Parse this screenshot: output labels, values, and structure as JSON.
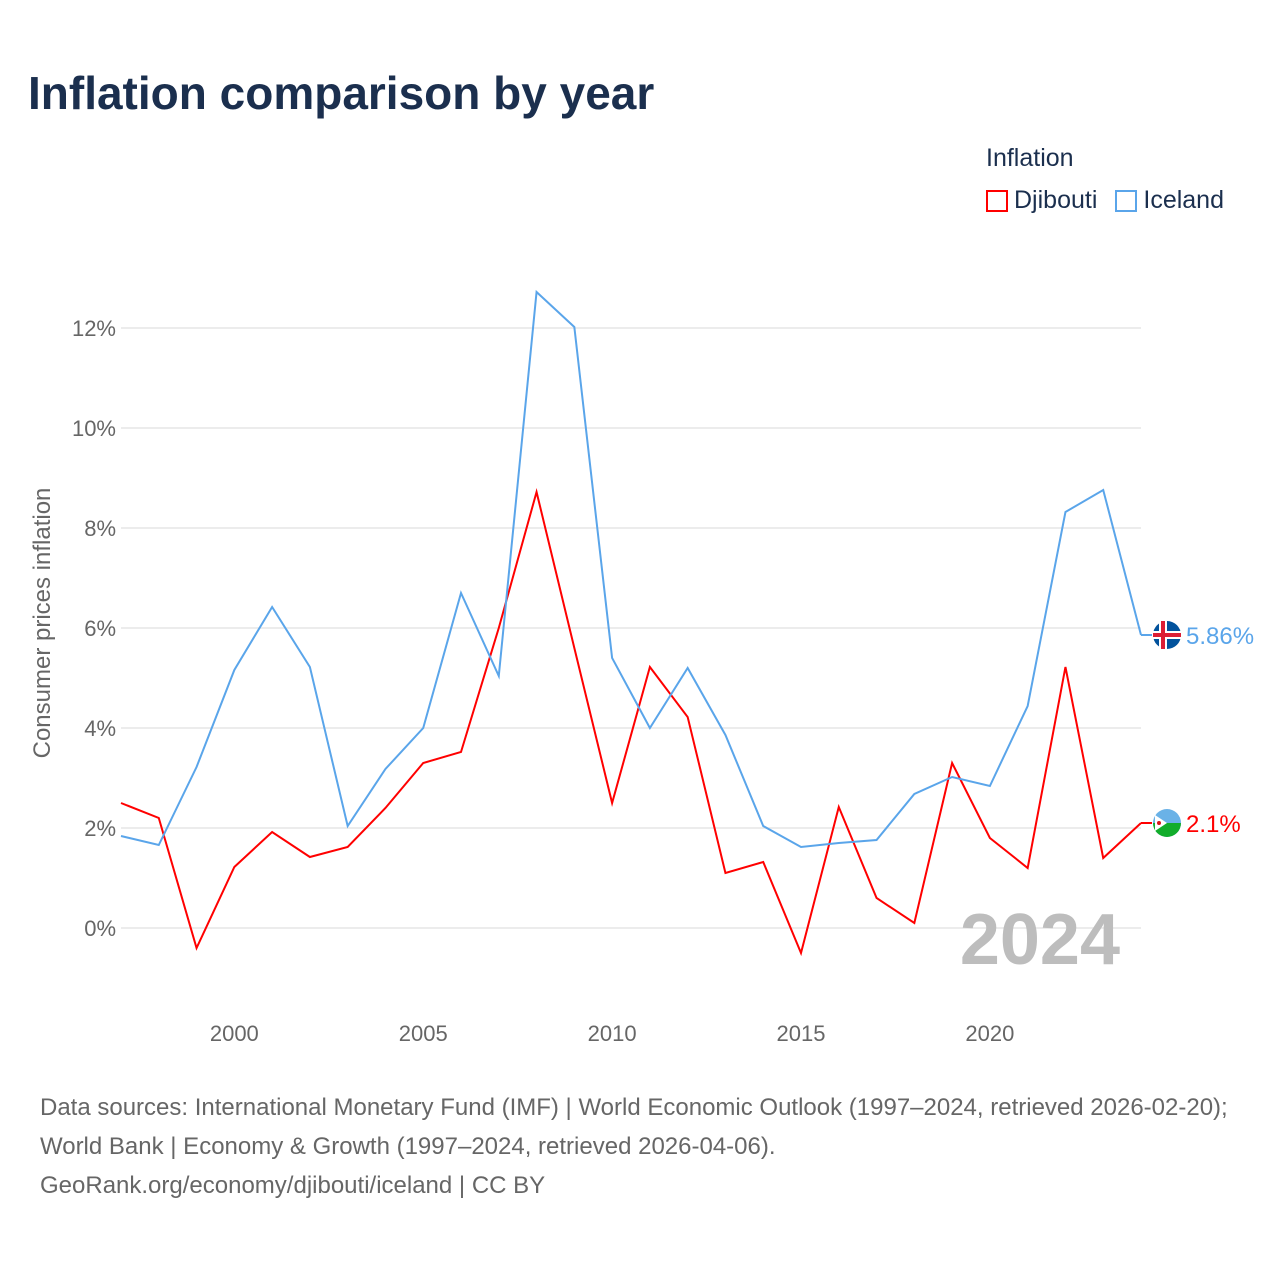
{
  "title": "Inflation comparison by year",
  "footer": {
    "sources": "Data sources: International Monetary Fund (IMF) | World Economic Outlook (1997–2024, retrieved 2026-02-20); World Bank | Economy & Growth (1997–2024, retrieved 2026-04-06).",
    "credit": "GeoRank.org/economy/djibouti/iceland | CC BY"
  },
  "chart_data": {
    "type": "line",
    "title": "Inflation comparison by year",
    "xlabel": "",
    "ylabel": "Consumer prices inflation",
    "legend_title": "Inflation",
    "legend_position": "top-right",
    "watermark_year": "2024",
    "xlim": [
      1997,
      2024
    ],
    "ylim": [
      -1.2,
      13.4
    ],
    "x_ticks": [
      "2000",
      "2005",
      "2010",
      "2015",
      "2020"
    ],
    "y_ticks": [
      "0%",
      "2%",
      "4%",
      "6%",
      "8%",
      "10%",
      "12%"
    ],
    "grid": true,
    "x": [
      1997,
      1998,
      1999,
      2000,
      2001,
      2002,
      2003,
      2004,
      2005,
      2006,
      2007,
      2008,
      2009,
      2010,
      2011,
      2012,
      2013,
      2014,
      2015,
      2016,
      2017,
      2018,
      2019,
      2020,
      2021,
      2022,
      2023,
      2024
    ],
    "series": [
      {
        "name": "Djibouti",
        "color": "#ff0000",
        "end_label": "2.1%",
        "values": [
          2.5,
          2.2,
          -0.4,
          1.22,
          1.92,
          1.42,
          1.62,
          2.4,
          3.3,
          3.52,
          6.0,
          8.72,
          5.6,
          2.5,
          5.22,
          4.22,
          1.1,
          1.32,
          -0.5,
          2.42,
          0.6,
          0.1,
          3.3,
          1.8,
          1.2,
          5.22,
          1.4,
          2.1
        ]
      },
      {
        "name": "Iceland",
        "color": "#5aa5ea",
        "end_label": "5.86%",
        "values": [
          1.84,
          1.66,
          3.22,
          5.16,
          6.42,
          5.22,
          2.04,
          3.18,
          4.0,
          6.7,
          5.04,
          12.72,
          12.02,
          5.4,
          4.0,
          5.2,
          3.86,
          2.04,
          1.62,
          1.7,
          1.76,
          2.68,
          3.02,
          2.84,
          4.44,
          8.32,
          8.76,
          5.86
        ]
      }
    ]
  }
}
